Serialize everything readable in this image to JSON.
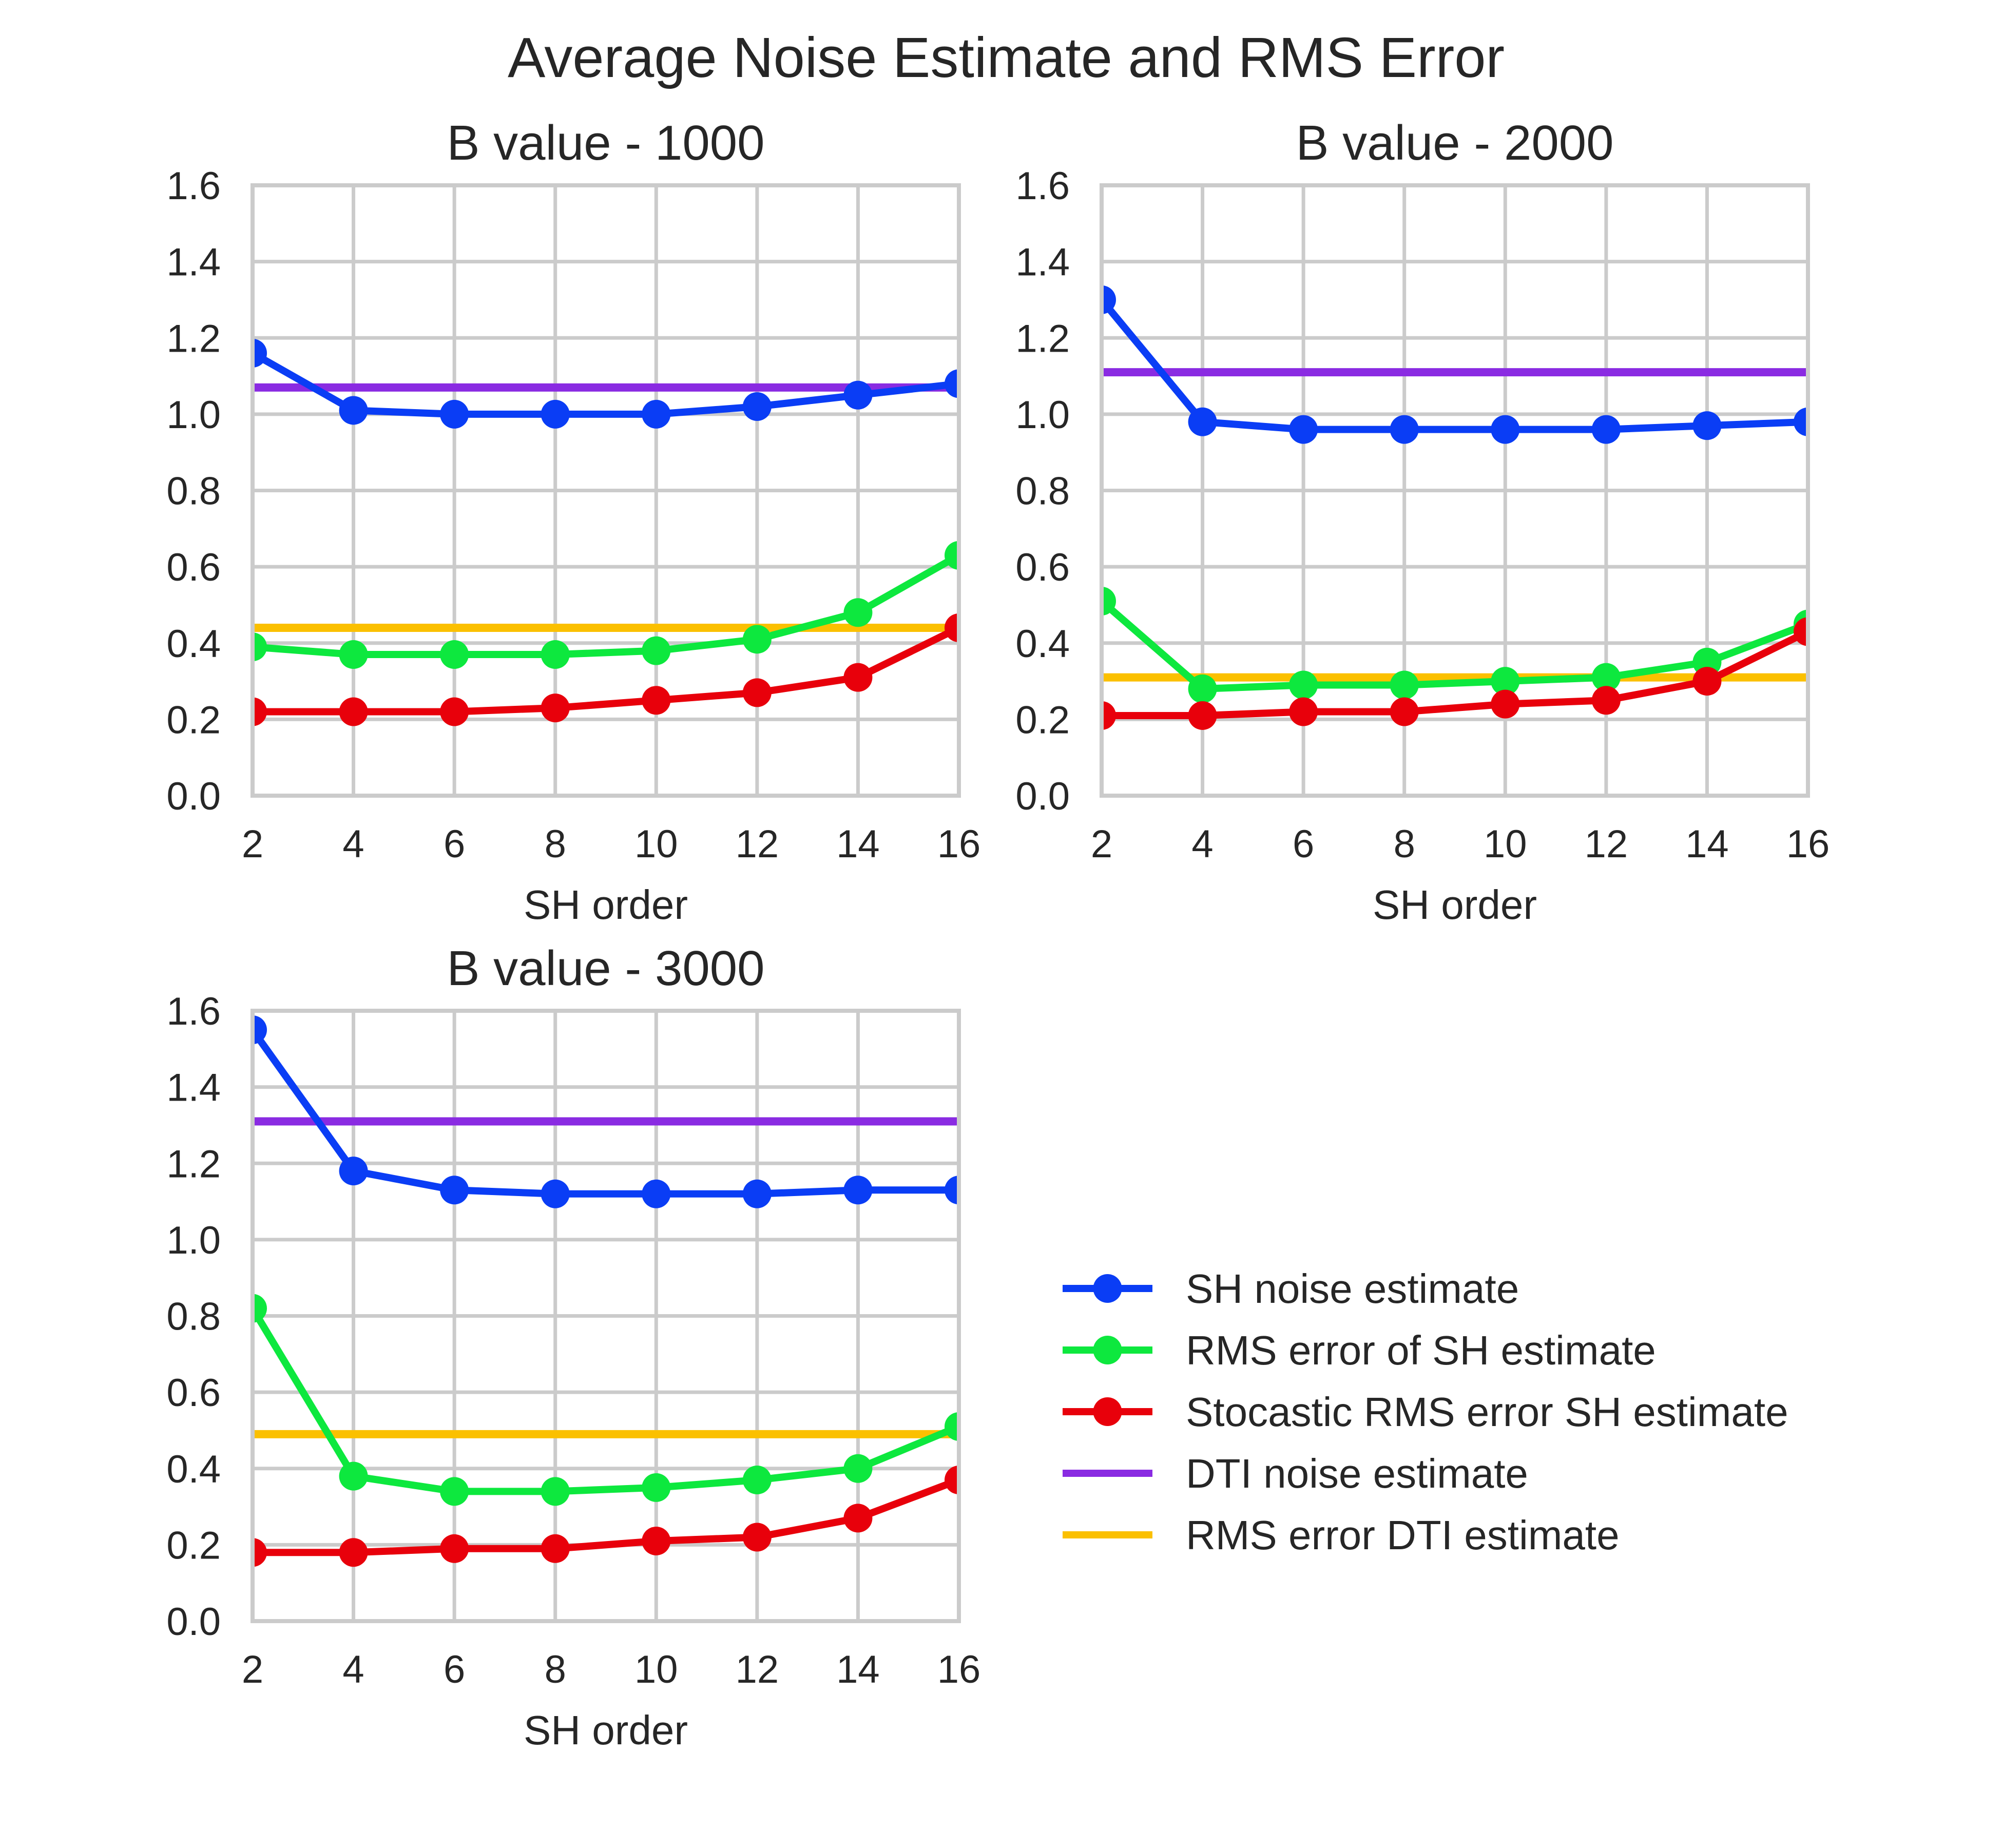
{
  "figure": {
    "title": "Average Noise Estimate and RMS Error"
  },
  "legend": {
    "location": "right",
    "entries": [
      {
        "label": "SH noise estimate",
        "color": "#0a3df5",
        "marker": true
      },
      {
        "label": "RMS error of SH estimate",
        "color": "#0de83e",
        "marker": true
      },
      {
        "label": "Stocastic RMS error SH estimate",
        "color": "#e8000b",
        "marker": true
      },
      {
        "label": "DTI noise estimate",
        "color": "#8a2be2",
        "marker": false
      },
      {
        "label": "RMS error DTI estimate",
        "color": "#fbc000",
        "marker": false
      }
    ]
  },
  "chart_data": [
    {
      "type": "line",
      "title": "B value - 1000",
      "xlabel": "SH order",
      "ylabel": "",
      "xlim": [
        2,
        16
      ],
      "ylim": [
        0,
        1.6
      ],
      "xticks": [
        "2",
        "4",
        "6",
        "8",
        "10",
        "12",
        "14",
        "16"
      ],
      "yticks": [
        "0.0",
        "0.2",
        "0.4",
        "0.6",
        "0.8",
        "1.0",
        "1.2",
        "1.4",
        "1.6"
      ],
      "grid": true,
      "x": [
        2,
        4,
        6,
        8,
        10,
        12,
        14,
        16
      ],
      "series": [
        {
          "name": "SH noise estimate",
          "color": "#0a3df5",
          "values": [
            1.16,
            1.01,
            1.0,
            1.0,
            1.0,
            1.02,
            1.05,
            1.08
          ]
        },
        {
          "name": "RMS error of SH estimate",
          "color": "#0de83e",
          "values": [
            0.39,
            0.37,
            0.37,
            0.37,
            0.38,
            0.41,
            0.48,
            0.63
          ]
        },
        {
          "name": "Stocastic RMS error SH estimate",
          "color": "#e8000b",
          "values": [
            0.22,
            0.22,
            0.22,
            0.23,
            0.25,
            0.27,
            0.31,
            0.44
          ]
        },
        {
          "name": "DTI noise estimate",
          "color": "#8a2be2",
          "values": [
            1.07,
            1.07,
            1.07,
            1.07,
            1.07,
            1.07,
            1.07,
            1.07
          ]
        },
        {
          "name": "RMS error DTI estimate",
          "color": "#fbc000",
          "values": [
            0.44,
            0.44,
            0.44,
            0.44,
            0.44,
            0.44,
            0.44,
            0.44
          ]
        }
      ]
    },
    {
      "type": "line",
      "title": "B value - 2000",
      "xlabel": "SH order",
      "ylabel": "",
      "xlim": [
        2,
        16
      ],
      "ylim": [
        0,
        1.6
      ],
      "xticks": [
        "2",
        "4",
        "6",
        "8",
        "10",
        "12",
        "14",
        "16"
      ],
      "yticks": [
        "0.0",
        "0.2",
        "0.4",
        "0.6",
        "0.8",
        "1.0",
        "1.2",
        "1.4",
        "1.6"
      ],
      "grid": true,
      "x": [
        2,
        4,
        6,
        8,
        10,
        12,
        14,
        16
      ],
      "series": [
        {
          "name": "SH noise estimate",
          "color": "#0a3df5",
          "values": [
            1.3,
            0.98,
            0.96,
            0.96,
            0.96,
            0.96,
            0.97,
            0.98
          ]
        },
        {
          "name": "RMS error of SH estimate",
          "color": "#0de83e",
          "values": [
            0.51,
            0.28,
            0.29,
            0.29,
            0.3,
            0.31,
            0.35,
            0.45
          ]
        },
        {
          "name": "Stocastic RMS error SH estimate",
          "color": "#e8000b",
          "values": [
            0.21,
            0.21,
            0.22,
            0.22,
            0.24,
            0.25,
            0.3,
            0.43
          ]
        },
        {
          "name": "DTI noise estimate",
          "color": "#8a2be2",
          "values": [
            1.11,
            1.11,
            1.11,
            1.11,
            1.11,
            1.11,
            1.11,
            1.11
          ]
        },
        {
          "name": "RMS error DTI estimate",
          "color": "#fbc000",
          "values": [
            0.31,
            0.31,
            0.31,
            0.31,
            0.31,
            0.31,
            0.31,
            0.31
          ]
        }
      ]
    },
    {
      "type": "line",
      "title": "B value - 3000",
      "xlabel": "SH order",
      "ylabel": "",
      "xlim": [
        2,
        16
      ],
      "ylim": [
        0,
        1.6
      ],
      "xticks": [
        "2",
        "4",
        "6",
        "8",
        "10",
        "12",
        "14",
        "16"
      ],
      "yticks": [
        "0.0",
        "0.2",
        "0.4",
        "0.6",
        "0.8",
        "1.0",
        "1.2",
        "1.4",
        "1.6"
      ],
      "grid": true,
      "x": [
        2,
        4,
        6,
        8,
        10,
        12,
        14,
        16
      ],
      "series": [
        {
          "name": "SH noise estimate",
          "color": "#0a3df5",
          "values": [
            1.55,
            1.18,
            1.13,
            1.12,
            1.12,
            1.12,
            1.13,
            1.13
          ]
        },
        {
          "name": "RMS error of SH estimate",
          "color": "#0de83e",
          "values": [
            0.82,
            0.38,
            0.34,
            0.34,
            0.35,
            0.37,
            0.4,
            0.51
          ]
        },
        {
          "name": "Stocastic RMS error SH estimate",
          "color": "#e8000b",
          "values": [
            0.18,
            0.18,
            0.19,
            0.19,
            0.21,
            0.22,
            0.27,
            0.37
          ]
        },
        {
          "name": "DTI noise estimate",
          "color": "#8a2be2",
          "values": [
            1.31,
            1.31,
            1.31,
            1.31,
            1.31,
            1.31,
            1.31,
            1.31
          ]
        },
        {
          "name": "RMS error DTI estimate",
          "color": "#fbc000",
          "values": [
            0.49,
            0.49,
            0.49,
            0.49,
            0.49,
            0.49,
            0.49,
            0.49
          ]
        }
      ]
    }
  ]
}
